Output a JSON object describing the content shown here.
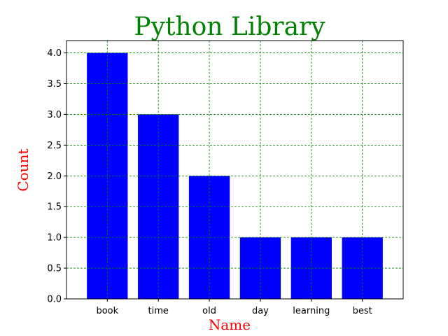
{
  "chart_data": {
    "type": "bar",
    "title": "Python Library",
    "xlabel": "Name",
    "ylabel": "Count",
    "categories": [
      "book",
      "time",
      "old",
      "day",
      "learning",
      "best"
    ],
    "values": [
      4,
      3,
      2,
      1,
      1,
      1
    ],
    "ylim": [
      0,
      4.2
    ],
    "yticks": [
      "0.0",
      "0.5",
      "1.0",
      "1.5",
      "2.0",
      "2.5",
      "3.0",
      "3.5",
      "4.0"
    ],
    "grid": true,
    "colors": {
      "bar": "#0000ff",
      "title": "#008000",
      "axis_labels": "#ff0000",
      "grid": "#008000"
    }
  }
}
